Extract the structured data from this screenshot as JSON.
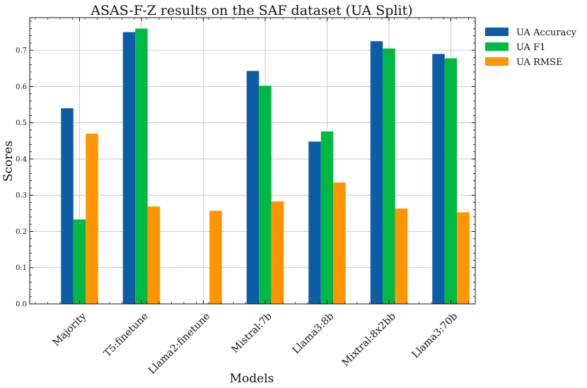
{
  "chart_data": {
    "type": "bar",
    "title": "ASAS-F-Z results on the SAF dataset (UA Split)",
    "xlabel": "Models",
    "ylabel": "Scores",
    "ylim": [
      0,
      0.79
    ],
    "yticks": [
      "0.0",
      "0.1",
      "0.2",
      "0.3",
      "0.4",
      "0.5",
      "0.6",
      "0.7"
    ],
    "grid": true,
    "legend_position": "outside-top-right",
    "categories": [
      "Majority",
      "T5:finetune",
      "Llama2:finetune",
      "Mistral:7b",
      "Llama3:8b",
      "Mixtral:8x2bb",
      "Llama3:70b"
    ],
    "series": [
      {
        "name": "UA Accuracy",
        "color": "#0c5da5",
        "values": [
          0.54,
          0.75,
          null,
          0.643,
          0.448,
          0.725,
          0.69
        ]
      },
      {
        "name": "UA F1",
        "color": "#00b945",
        "values": [
          0.233,
          0.76,
          null,
          0.602,
          0.476,
          0.705,
          0.678
        ]
      },
      {
        "name": "UA RMSE",
        "color": "#ff9500",
        "values": [
          0.47,
          0.269,
          0.257,
          0.283,
          0.335,
          0.263,
          0.253
        ]
      }
    ]
  }
}
